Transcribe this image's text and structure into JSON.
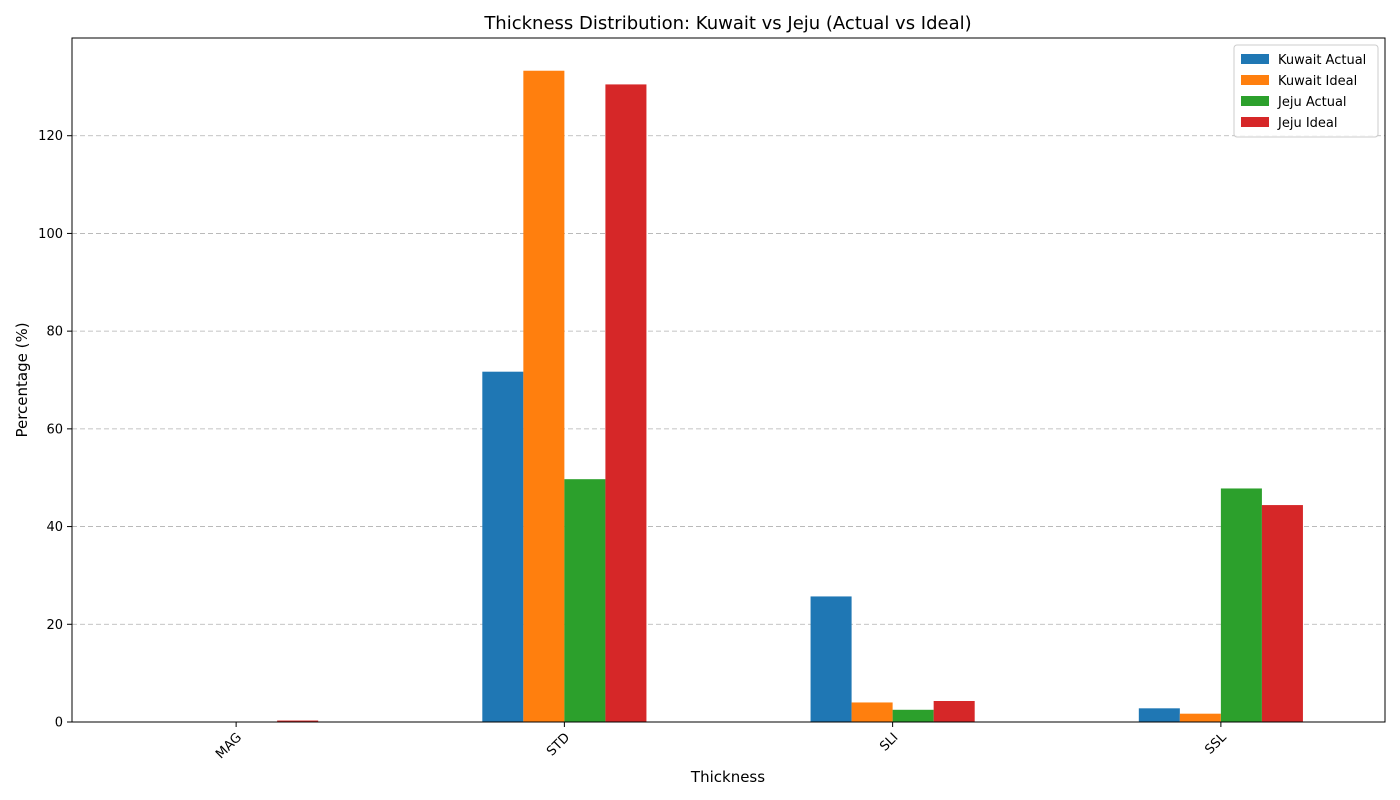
{
  "chart_data": {
    "type": "bar",
    "title": "Thickness Distribution: Kuwait vs Jeju (Actual vs Ideal)",
    "xlabel": "Thickness",
    "ylabel": "Percentage (%)",
    "categories": [
      "MAG",
      "STD",
      "SLI",
      "SSL"
    ],
    "ylim": [
      0,
      140
    ],
    "yticks": [
      0,
      20,
      40,
      60,
      80,
      100,
      120
    ],
    "grid": "y-dashed",
    "legend_position": "top-right",
    "series": [
      {
        "name": "Kuwait Actual",
        "color": "#1f77b4",
        "values": [
          0,
          71.7,
          25.7,
          2.8
        ]
      },
      {
        "name": "Kuwait Ideal",
        "color": "#ff7f0e",
        "values": [
          0,
          133.3,
          4.0,
          1.7
        ]
      },
      {
        "name": "Jeju Actual",
        "color": "#2ca02c",
        "values": [
          0,
          49.7,
          2.5,
          47.8
        ]
      },
      {
        "name": "Jeju Ideal",
        "color": "#d62728",
        "values": [
          0.3,
          130.5,
          4.3,
          44.4
        ]
      }
    ]
  }
}
